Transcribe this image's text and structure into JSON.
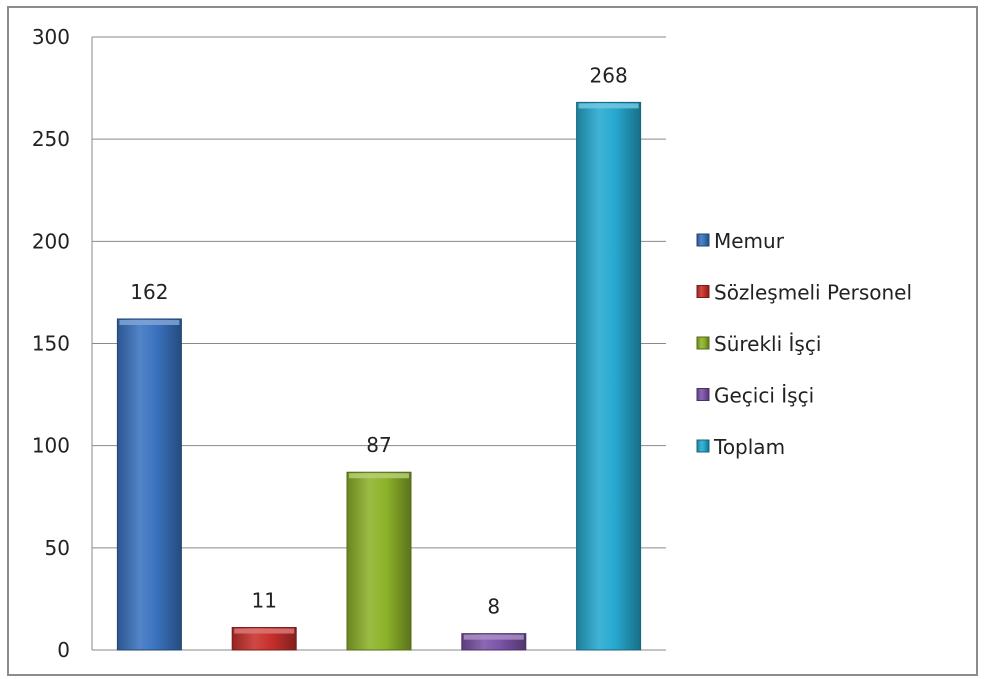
{
  "chart_data": {
    "type": "bar",
    "categories": [
      "Memur",
      "Sözleşmeli Personel",
      "Sürekli İşçi",
      "Geçici İşçi",
      "Toplam"
    ],
    "values": [
      162,
      11,
      87,
      8,
      268
    ],
    "data_labels": [
      "162",
      "11",
      "87",
      "8",
      "268"
    ],
    "colors": [
      "#3a73c0",
      "#c8302c",
      "#8db32a",
      "#7b53a8",
      "#26a9cf"
    ],
    "title": "",
    "xlabel": "",
    "ylabel": "",
    "ylim": [
      0,
      300
    ],
    "yticks": [
      0,
      50,
      100,
      150,
      200,
      250,
      300
    ],
    "ytick_labels": [
      "0",
      "50",
      "100",
      "150",
      "200",
      "250",
      "300"
    ],
    "grid": true,
    "legend": {
      "position": "right",
      "entries": [
        "Memur",
        "Sözleşmeli Personel",
        "Sürekli İşçi",
        "Geçici İşçi",
        "Toplam"
      ]
    }
  }
}
